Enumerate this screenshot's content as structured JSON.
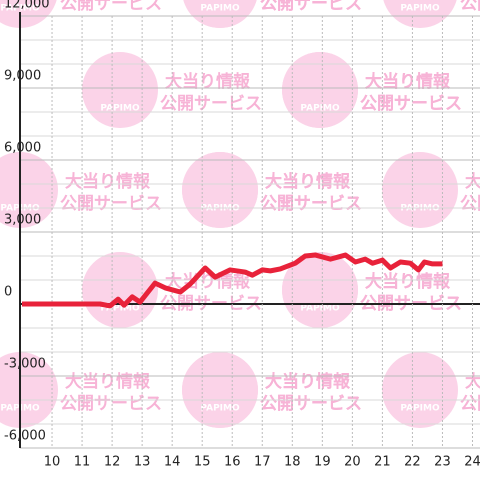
{
  "chart_data": {
    "type": "line",
    "watermark": {
      "logo": "PAPIMO",
      "line1": "大当り情報",
      "line2": "公開サービス"
    },
    "x": [
      9,
      11.6,
      11.93,
      12.2,
      12.4,
      12.67,
      12.93,
      13.43,
      13.77,
      14.27,
      14.6,
      15.1,
      15.43,
      15.93,
      16.43,
      16.67,
      17.0,
      17.27,
      17.6,
      18.1,
      18.43,
      18.77,
      19.27,
      19.77,
      20.1,
      20.43,
      20.67,
      21.0,
      21.27,
      21.6,
      21.93,
      22.2,
      22.4,
      22.67,
      23.0
    ],
    "series": [
      {
        "color": "#e8223a",
        "values": [
          0,
          0,
          -80,
          200,
          -50,
          300,
          80,
          870,
          670,
          500,
          830,
          1500,
          1120,
          1420,
          1330,
          1200,
          1420,
          1380,
          1460,
          1700,
          2000,
          2040,
          1870,
          2040,
          1750,
          1870,
          1700,
          1830,
          1500,
          1750,
          1700,
          1420,
          1750,
          1670,
          1670
        ]
      }
    ],
    "xlim": [
      9,
      24.25
    ],
    "xticks": [
      10,
      11,
      12,
      13,
      14,
      15,
      16,
      17,
      18,
      19,
      20,
      21,
      22,
      23,
      24
    ],
    "ylim": [
      -6000,
      12000
    ],
    "yticks": [
      {
        "value": -6000,
        "label": "-6,000"
      },
      {
        "value": -3000,
        "label": "-3,000"
      },
      0,
      {
        "value": 3000,
        "label": "3,000"
      },
      {
        "value": 6000,
        "label": "6,000"
      },
      {
        "value": 9000,
        "label": "9,000"
      },
      {
        "value": 12000,
        "label": "12,000"
      }
    ],
    "yminorticks": [
      -5000,
      -4000,
      -2000,
      -1000,
      1000,
      2000,
      4000,
      5000,
      7000,
      8000,
      10000,
      11000
    ],
    "grid": true
  }
}
